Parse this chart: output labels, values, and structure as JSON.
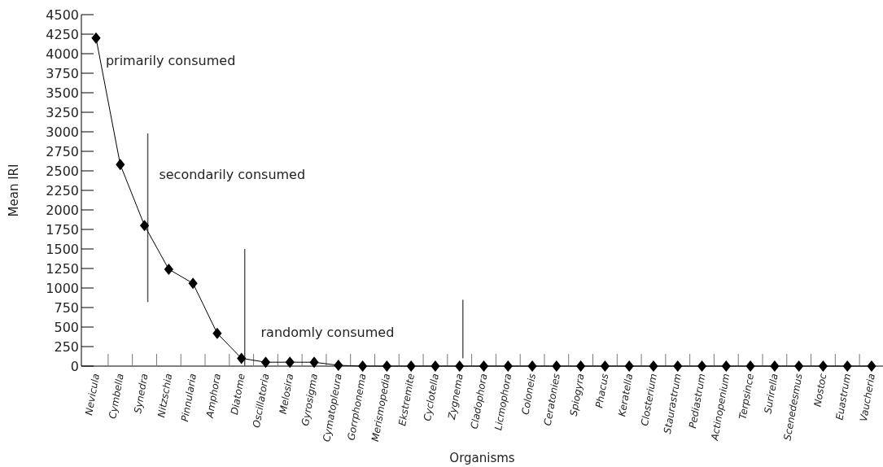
{
  "chart_data": {
    "type": "line",
    "xlabel": "Organisms",
    "ylabel": "Mean IRI",
    "categories": [
      "Nevicula",
      "Cymbella",
      "Synedra",
      "Nitzschia",
      "Pinnularia",
      "Amphora",
      "Diatome",
      "Oscillatoria",
      "Melosira",
      "Gyrosigma",
      "Cymatopleura",
      "Gorrphonema",
      "Merismopedia",
      "Ekstremite",
      "Cyclotella",
      "Zygnema",
      "Cladophora",
      "Licmophora",
      "Coloneis",
      "Ceratonies",
      "Spiogyra",
      "Phacus",
      "Keratella",
      "Closterium",
      "Staurastrum",
      "Pediastrum",
      "Actinopenium",
      "Terpsince",
      "Surirella",
      "Scenedesmus",
      "Nostoc",
      "Euastrum",
      "Vaucheria"
    ],
    "series": [
      {
        "color": "#000000",
        "values": [
          4200,
          2580,
          1800,
          1240,
          1060,
          420,
          100,
          50,
          50,
          50,
          10,
          0,
          0,
          0,
          0,
          0,
          0,
          0,
          0,
          0,
          0,
          0,
          0,
          0,
          0,
          0,
          0,
          0,
          0,
          0,
          0,
          0,
          0
        ]
      }
    ],
    "ylim": [
      0,
      4500
    ],
    "yticks": [
      0,
      250,
      500,
      750,
      1000,
      1250,
      1500,
      1750,
      2000,
      2250,
      2500,
      2750,
      3000,
      3250,
      3500,
      3750,
      4000,
      4250,
      4500
    ],
    "marker": "diamond",
    "line_style": "solid",
    "ref_lines": [
      {
        "axis": "x",
        "value": "Synedra",
        "color": "#555555"
      },
      {
        "axis": "x",
        "value": "Diatome",
        "color": "#555555"
      },
      {
        "axis": "x",
        "value": "Zygnema",
        "color": "#555555"
      }
    ],
    "annotations": [
      "primarily consumed",
      "secondarily consumed",
      "randomly consumed"
    ]
  }
}
